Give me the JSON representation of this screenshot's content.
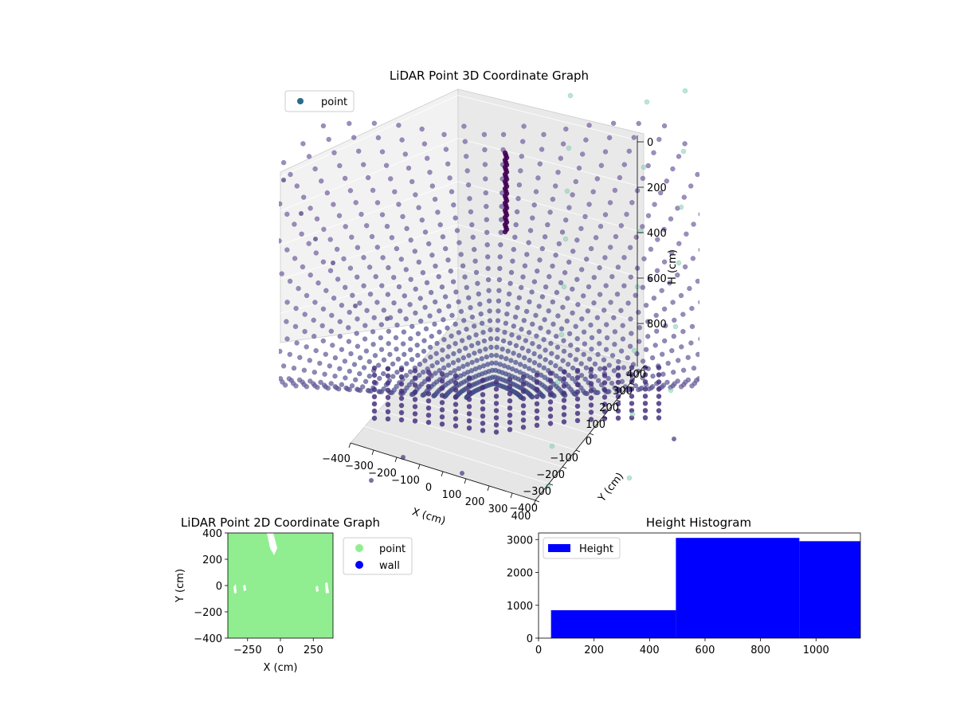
{
  "chart_data": [
    {
      "id": "plot3d",
      "type": "scatter",
      "title": "LiDAR Point 3D Coordinate Graph",
      "xlabel": "X (cm)",
      "ylabel": "Y (cm)",
      "zlabel": "H (cm)",
      "x_ticks": [
        -400,
        -300,
        -200,
        -100,
        0,
        100,
        200,
        300,
        400
      ],
      "y_ticks": [
        -400,
        -300,
        -200,
        -100,
        0,
        100,
        200,
        300,
        400
      ],
      "h_ticks": [
        0,
        200,
        400,
        600,
        800
      ],
      "xlim": [
        -400,
        400
      ],
      "ylim": [
        -400,
        400
      ],
      "hlim": [
        0,
        1000
      ],
      "h_axis_inverted": true,
      "legend": {
        "position": "top-left",
        "entries": [
          {
            "label": "point",
            "color": "#2a6a8c"
          }
        ]
      },
      "grid": true,
      "colormap": "viridis",
      "description_series": [
        {
          "name": "point",
          "pattern": "radial sweep lines forming a bowl-shaped dome around the sensor origin",
          "color_near": "#3b4f8a",
          "color_far": "#7c67a8"
        }
      ]
    },
    {
      "id": "plot2d",
      "type": "scatter",
      "title": "LiDAR Point 2D Coordinate Graph",
      "xlabel": "X (cm)",
      "ylabel": "Y (cm)",
      "x_ticks": [
        -250,
        0,
        250
      ],
      "y_ticks": [
        400,
        200,
        0,
        -200,
        -400
      ],
      "xlim": [
        -400,
        400
      ],
      "ylim": [
        -400,
        400
      ],
      "legend": {
        "position": "outside-right",
        "entries": [
          {
            "label": "point",
            "color": "#90ee90"
          },
          {
            "label": "wall",
            "color": "#0000ff"
          }
        ]
      },
      "series": [
        {
          "name": "point",
          "color": "#90ee90",
          "coverage": "fills nearly entire area"
        },
        {
          "name": "wall",
          "color": "#0000ff",
          "coverage": "not visible"
        }
      ]
    },
    {
      "id": "histogram",
      "type": "bar",
      "title": "Height Histogram",
      "x_ticks": [
        0,
        200,
        400,
        600,
        800,
        1000
      ],
      "y_ticks": [
        0,
        1000,
        2000,
        3000
      ],
      "xlim": [
        0,
        1160
      ],
      "ylim": [
        0,
        3200
      ],
      "legend": {
        "position": "top-left",
        "entries": [
          {
            "label": "Height",
            "color": "#0000ff"
          }
        ]
      },
      "series": [
        {
          "name": "Height",
          "color": "#0000ff",
          "bins": [
            {
              "start": 45,
              "end": 495,
              "count": 850
            },
            {
              "start": 495,
              "end": 940,
              "count": 3050
            },
            {
              "start": 940,
              "end": 1160,
              "count": 2950
            }
          ]
        }
      ]
    }
  ]
}
